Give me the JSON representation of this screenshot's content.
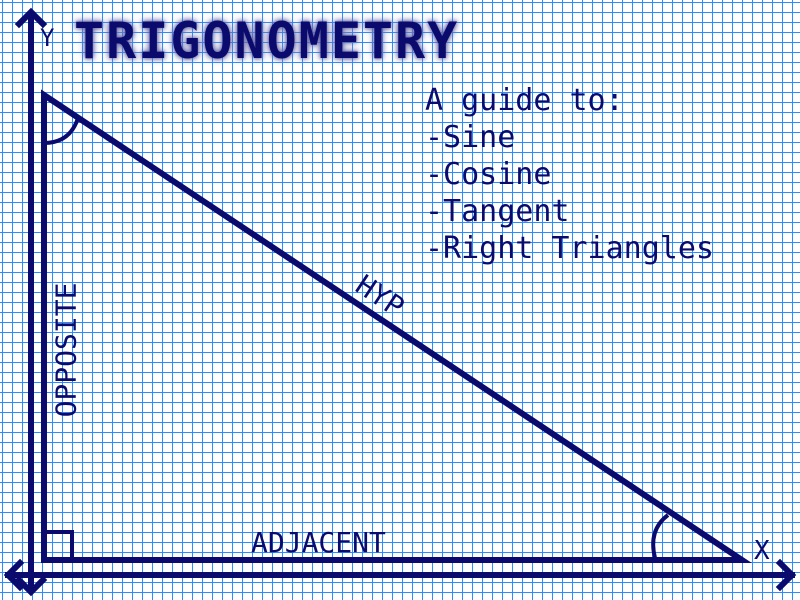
{
  "title": "TRIGONOMETRY",
  "guide": {
    "heading": "A guide to:",
    "items": [
      "-Sine",
      "-Cosine",
      "-Tangent",
      "-Right Triangles"
    ]
  },
  "labels": {
    "y_axis": "Y",
    "x_axis": "X",
    "opposite": "OPPOSITE",
    "adjacent": "ADJACENT",
    "hypotenuse": "HYP"
  },
  "colors": {
    "ink": "#0b0b6e",
    "grid": "#2a8cff",
    "paper": "#ffffff"
  }
}
